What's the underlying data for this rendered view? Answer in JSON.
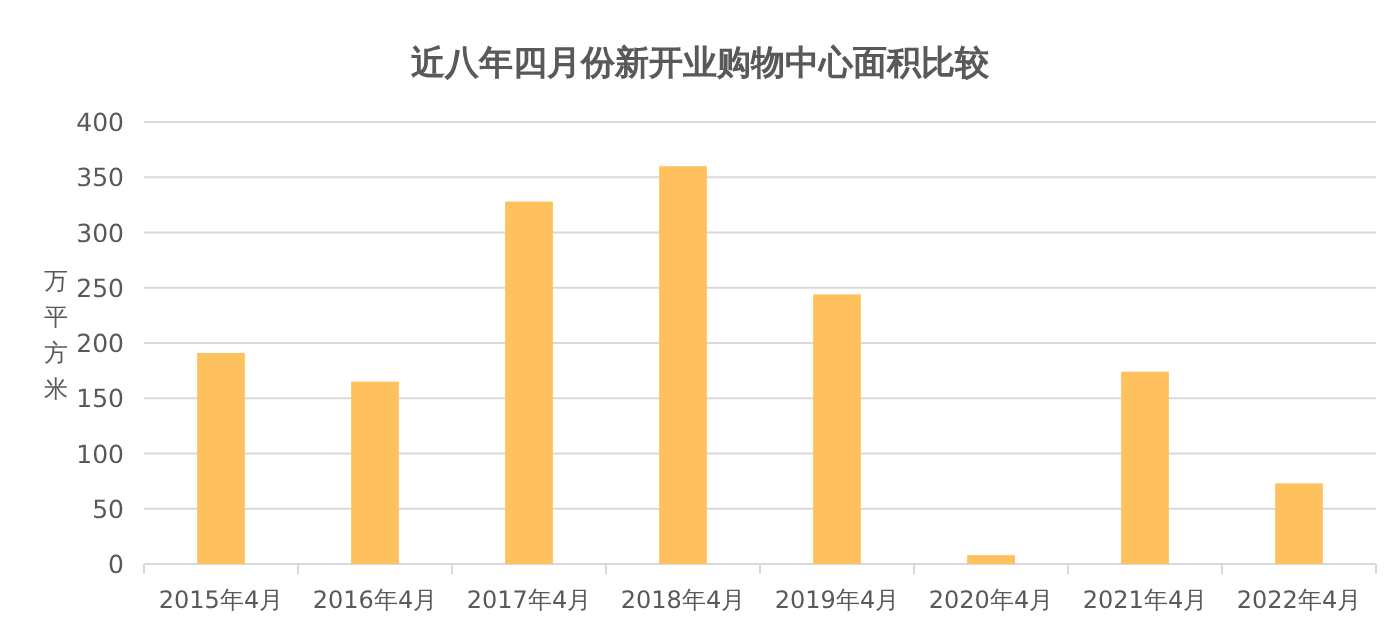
{
  "chart_data": {
    "type": "bar",
    "title": "近八年四月份新开业购物中心面积比较",
    "ylabel": "万平方米",
    "categories": [
      "2015年4月",
      "2016年4月",
      "2017年4月",
      "2018年4月",
      "2019年4月",
      "2020年4月",
      "2021年4月",
      "2022年4月"
    ],
    "values": [
      191,
      165,
      328,
      360,
      244,
      8,
      174,
      73
    ],
    "color": "#ffc15e",
    "ylim": [
      0,
      400
    ],
    "yticks": [
      0,
      50,
      100,
      150,
      200,
      250,
      300,
      350,
      400
    ],
    "grid": "y"
  }
}
